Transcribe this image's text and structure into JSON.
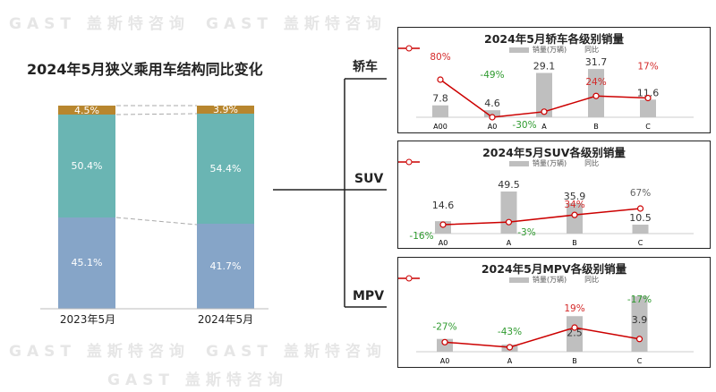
{
  "watermark": "GAST 盖斯特咨询",
  "colors": {
    "small": "#b8862e",
    "suv": "#6ab5b3",
    "sedan": "#86a5c8",
    "bar": "#bfbfbf",
    "line": "#cc0000",
    "pos": "#d42a2a",
    "neg": "#2e9a2e",
    "neutral": "#666666"
  },
  "chart_data": [
    {
      "type": "bar",
      "stacked": true,
      "title": "2024年5月狭义乘用车结构同比变化",
      "categories": [
        "2023年5月",
        "2024年5月"
      ],
      "series": [
        {
          "name": "bottom",
          "values": [
            45.1,
            41.7
          ],
          "labels": [
            "45.1%",
            "41.7%"
          ]
        },
        {
          "name": "middle",
          "values": [
            50.4,
            54.4
          ],
          "labels": [
            "50.4%",
            "54.4%"
          ]
        },
        {
          "name": "top",
          "values": [
            4.5,
            3.9
          ],
          "labels": [
            "4.5%",
            "3.9%"
          ]
        }
      ],
      "ylim": [
        0,
        100
      ]
    },
    {
      "type": "bar",
      "title": "2024年5月轿车各级别销量",
      "branch": "轿车",
      "legend": [
        "销量(万辆)",
        "同比"
      ],
      "categories": [
        "A00",
        "A0",
        "A",
        "B",
        "C"
      ],
      "values": [
        7.8,
        4.6,
        29.1,
        31.7,
        11.6
      ],
      "value_labels": [
        "7.8",
        "4.6",
        "29.1",
        "31.7",
        "11.6"
      ],
      "yoy": [
        80,
        -49,
        -30,
        24,
        17
      ],
      "yoy_labels": [
        "80%",
        "-49%",
        "-30%",
        "24%",
        "17%"
      ]
    },
    {
      "type": "bar",
      "title": "2024年5月SUV各级别销量",
      "branch": "SUV",
      "legend": [
        "销量(万辆)",
        "同比"
      ],
      "categories": [
        "A0",
        "A",
        "B",
        "C"
      ],
      "values": [
        14.6,
        49.5,
        35.9,
        10.5
      ],
      "value_labels": [
        "14.6",
        "49.5",
        "35.9",
        "10.5"
      ],
      "yoy": [
        -16,
        -3,
        34,
        67
      ],
      "yoy_labels": [
        "-16%",
        "-3%",
        "34%",
        "67%"
      ]
    },
    {
      "type": "bar",
      "title": "2024年5月MPV各级别销量",
      "branch": "MPV",
      "legend": [
        "销量(万辆)",
        "同比"
      ],
      "categories": [
        "A0",
        "A",
        "B",
        "C"
      ],
      "values": [
        0.9,
        0.5,
        2.5,
        3.9
      ],
      "value_labels": [
        "",
        "",
        "2.5",
        "3.9"
      ],
      "yoy": [
        -27,
        -43,
        19,
        -17
      ],
      "yoy_labels": [
        "-27%",
        "-43%",
        "19%",
        "-17%"
      ]
    }
  ]
}
